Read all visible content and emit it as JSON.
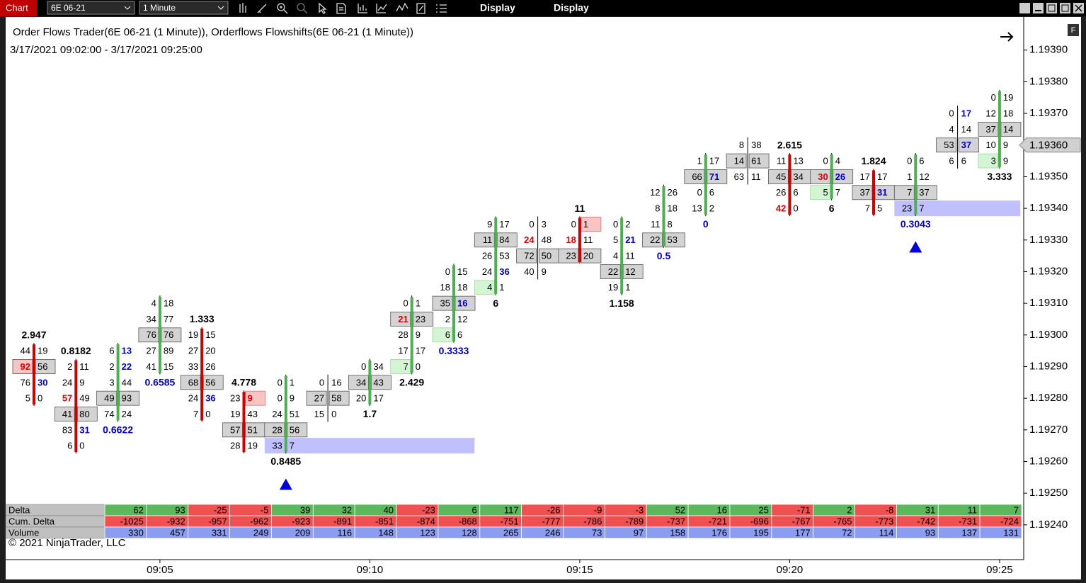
{
  "toolbar": {
    "app_label": "Chart",
    "instrument": "6E 06-21",
    "interval": "1 Minute",
    "menus": [
      "Display",
      "Display"
    ]
  },
  "chart_data": {
    "type": "footprint",
    "title": "Order Flows Trader(6E 06-21 (1 Minute)),  Orderflows Flowshifts(6E 06-21 (1 Minute))",
    "subtitle": "3/17/2021 09:02:00 - 3/17/2021 09:25:00",
    "copyright": "© 2021 NinjaTrader, LLC",
    "panel_button": "F",
    "ylim": [
      1.19229,
      1.19398
    ],
    "yticks": [
      {
        "value": 1.1939,
        "label": "1.19390"
      },
      {
        "value": 1.1938,
        "label": "1.19380"
      },
      {
        "value": 1.1937,
        "label": "1.19370"
      },
      {
        "value": 1.1936,
        "label": "1.19360"
      },
      {
        "value": 1.1935,
        "label": "1.19350"
      },
      {
        "value": 1.1934,
        "label": "1.19340"
      },
      {
        "value": 1.1933,
        "label": "1.19330"
      },
      {
        "value": 1.1932,
        "label": "1.19320"
      },
      {
        "value": 1.1931,
        "label": "1.19310"
      },
      {
        "value": 1.193,
        "label": "1.19300"
      },
      {
        "value": 1.1929,
        "label": "1.19290"
      },
      {
        "value": 1.1928,
        "label": "1.19280"
      },
      {
        "value": 1.1927,
        "label": "1.19270"
      },
      {
        "value": 1.1926,
        "label": "1.19260"
      },
      {
        "value": 1.1925,
        "label": "1.19250"
      },
      {
        "value": 1.1924,
        "label": "1.19240"
      }
    ],
    "last_price": {
      "value": 1.1936,
      "label": "1.19360"
    },
    "xticks": [
      "09:05",
      "09:10",
      "09:15",
      "09:20",
      "09:25"
    ],
    "colors": {
      "up": "#4caf50",
      "down": "#d00000",
      "red": "#e00000",
      "blue": "#0000c8",
      "box": "#d3d3d3",
      "red_box": "#f8c4c4",
      "green_box": "#d4f5d4",
      "band": "#c0c0ff",
      "signal": "#0000e0",
      "pos": "#5cb85c",
      "neg": "#f05050",
      "volume": "#8c9cf0",
      "header": "#c0c0c0"
    },
    "bars": [
      {
        "time": "09:02",
        "candle": "down",
        "label": "2.947",
        "label_pos": "top",
        "rows": [
          {
            "p": 1.19295,
            "bid": 44,
            "ask": 19
          },
          {
            "p": 1.1929,
            "bid": 92,
            "ask": 56,
            "box": true,
            "bc": "red",
            "bb": "red_box"
          },
          {
            "p": 1.19285,
            "bid": 76,
            "ask": 30,
            "ac": "blue"
          },
          {
            "p": 1.1928,
            "bid": 5,
            "ask": 0
          }
        ]
      },
      {
        "time": "09:03",
        "candle": "down",
        "label": "0.8182",
        "label_pos": "top",
        "rows": [
          {
            "p": 1.1929,
            "bid": 2,
            "ask": 11
          },
          {
            "p": 1.19285,
            "bid": 24,
            "ask": 9
          },
          {
            "p": 1.1928,
            "bid": 57,
            "ask": 49,
            "bc": "red"
          },
          {
            "p": 1.19275,
            "bid": 41,
            "ask": 80,
            "box": true
          },
          {
            "p": 1.1927,
            "bid": 83,
            "ask": 31,
            "ac": "blue"
          },
          {
            "p": 1.19265,
            "bid": 6,
            "ask": 0
          }
        ]
      },
      {
        "time": "09:04",
        "candle": "up",
        "label": "0.6622",
        "label_pos": "bottom",
        "label_color": "blue",
        "rows": [
          {
            "p": 1.19295,
            "bid": 6,
            "ask": 13,
            "ac": "blue"
          },
          {
            "p": 1.1929,
            "bid": 2,
            "ask": 22,
            "ac": "blue"
          },
          {
            "p": 1.19285,
            "bid": 3,
            "ask": 44
          },
          {
            "p": 1.1928,
            "bid": 49,
            "ask": 93,
            "box": true
          },
          {
            "p": 1.19275,
            "bid": 74,
            "ask": 24
          }
        ]
      },
      {
        "time": "09:05",
        "candle": "up",
        "label": "0.6585",
        "label_pos": "bottom",
        "label_color": "blue",
        "rows": [
          {
            "p": 1.1931,
            "bid": 4,
            "ask": 18
          },
          {
            "p": 1.19305,
            "bid": 34,
            "ask": 77
          },
          {
            "p": 1.193,
            "bid": 76,
            "ask": 76,
            "box": true
          },
          {
            "p": 1.19295,
            "bid": 27,
            "ask": 89
          },
          {
            "p": 1.1929,
            "bid": 41,
            "ask": 15
          }
        ]
      },
      {
        "time": "09:06",
        "candle": "down",
        "label": "1.333",
        "label_pos": "top",
        "rows": [
          {
            "p": 1.193,
            "bid": 19,
            "ask": 15
          },
          {
            "p": 1.19295,
            "bid": 27,
            "ask": 20
          },
          {
            "p": 1.1929,
            "bid": 33,
            "ask": 26
          },
          {
            "p": 1.19285,
            "bid": 68,
            "ask": 56,
            "box": true
          },
          {
            "p": 1.1928,
            "bid": 24,
            "ask": 36,
            "ac": "blue"
          },
          {
            "p": 1.19275,
            "bid": 7,
            "ask": 0
          }
        ]
      },
      {
        "time": "09:07",
        "candle": "down",
        "label": "4.778",
        "label_pos": "top",
        "rows": [
          {
            "p": 1.1928,
            "bid": 23,
            "ask": 9,
            "ac": "red",
            "ab": "red_box"
          },
          {
            "p": 1.19275,
            "bid": 19,
            "ask": 43
          },
          {
            "p": 1.1927,
            "bid": 57,
            "ask": 51,
            "box": true
          },
          {
            "p": 1.19265,
            "bid": 28,
            "ask": 19
          }
        ]
      },
      {
        "time": "09:08",
        "candle": "up",
        "label": "0.8485",
        "label_pos": "bottom",
        "signal": "up",
        "rows": [
          {
            "p": 1.19285,
            "bid": 0,
            "ask": 1
          },
          {
            "p": 1.1928,
            "bid": 0,
            "ask": 9
          },
          {
            "p": 1.19275,
            "bid": 24,
            "ask": 51
          },
          {
            "p": 1.1927,
            "bid": 28,
            "ask": 56,
            "box": true
          },
          {
            "p": 1.19265,
            "bid": 33,
            "ask": 7,
            "band_bars": 5
          }
        ]
      },
      {
        "time": "09:09",
        "rows": [
          {
            "p": 1.19285,
            "bid": 0,
            "ask": 16
          },
          {
            "p": 1.1928,
            "bid": 27,
            "ask": 58,
            "box": true
          },
          {
            "p": 1.19275,
            "bid": 15,
            "ask": 0
          }
        ]
      },
      {
        "time": "09:10",
        "candle": "up",
        "label": "1.7",
        "label_pos": "bottom",
        "rows": [
          {
            "p": 1.1929,
            "bid": 0,
            "ask": 34
          },
          {
            "p": 1.19285,
            "bid": 34,
            "ask": 43,
            "box": true
          },
          {
            "p": 1.1928,
            "bid": 20,
            "ask": 17
          }
        ]
      },
      {
        "time": "09:11",
        "candle": "up",
        "label": "2.429",
        "label_pos": "bottom",
        "rows": [
          {
            "p": 1.1931,
            "bid": 0,
            "ask": 1
          },
          {
            "p": 1.19305,
            "bid": 21,
            "ask": 23,
            "box": true,
            "bc": "red"
          },
          {
            "p": 1.193,
            "bid": 28,
            "ask": 9
          },
          {
            "p": 1.19295,
            "bid": 17,
            "ask": 17
          },
          {
            "p": 1.1929,
            "bid": 7,
            "ask": 0,
            "bb": "green_box"
          }
        ]
      },
      {
        "time": "09:12",
        "candle": "up",
        "label": "0.3333",
        "label_pos": "bottom",
        "label_color": "blue",
        "rows": [
          {
            "p": 1.1932,
            "bid": 0,
            "ask": 15
          },
          {
            "p": 1.19315,
            "bid": 18,
            "ask": 18
          },
          {
            "p": 1.1931,
            "bid": 35,
            "ask": 16,
            "box": true,
            "ac": "blue"
          },
          {
            "p": 1.19305,
            "bid": 2,
            "ask": 12
          },
          {
            "p": 1.193,
            "bid": 6,
            "ask": 6,
            "bb": "green_box"
          }
        ]
      },
      {
        "time": "09:13",
        "candle": "up",
        "label": "6",
        "label_pos": "bottom",
        "rows": [
          {
            "p": 1.19335,
            "bid": 9,
            "ask": 17
          },
          {
            "p": 1.1933,
            "bid": 11,
            "ask": 84,
            "box": true
          },
          {
            "p": 1.19325,
            "bid": 26,
            "ask": 53
          },
          {
            "p": 1.1932,
            "bid": 24,
            "ask": 36,
            "ac": "blue"
          },
          {
            "p": 1.19315,
            "bid": 4,
            "ask": 1,
            "bb": "green_box"
          }
        ]
      },
      {
        "time": "09:14",
        "rows": [
          {
            "p": 1.19335,
            "bid": 0,
            "ask": 3
          },
          {
            "p": 1.1933,
            "bid": 24,
            "ask": 48,
            "bc": "red"
          },
          {
            "p": 1.19325,
            "bid": 72,
            "ask": 50,
            "box": true
          },
          {
            "p": 1.1932,
            "bid": 40,
            "ask": 9
          }
        ]
      },
      {
        "time": "09:15",
        "candle": "down",
        "label": "11",
        "label_pos": "top",
        "rows": [
          {
            "p": 1.19335,
            "bid": 0,
            "ask": 1,
            "ab": "red_box"
          },
          {
            "p": 1.1933,
            "bid": 18,
            "ask": 11,
            "bc": "red"
          },
          {
            "p": 1.19325,
            "bid": 23,
            "ask": 20,
            "box": true
          }
        ]
      },
      {
        "time": "09:16",
        "candle": "up",
        "label": "1.158",
        "label_pos": "bottom",
        "rows": [
          {
            "p": 1.19335,
            "bid": 0,
            "ask": 2
          },
          {
            "p": 1.1933,
            "bid": 5,
            "ask": 21,
            "ac": "blue"
          },
          {
            "p": 1.19325,
            "bid": 4,
            "ask": 11
          },
          {
            "p": 1.1932,
            "bid": 22,
            "ask": 12,
            "box": true
          },
          {
            "p": 1.19315,
            "bid": 19,
            "ask": 1
          }
        ]
      },
      {
        "time": "09:17",
        "candle": "up",
        "label": "0.5",
        "label_pos": "bottom",
        "label_color": "blue",
        "rows": [
          {
            "p": 1.19345,
            "bid": 12,
            "ask": 26
          },
          {
            "p": 1.1934,
            "bid": 8,
            "ask": 18
          },
          {
            "p": 1.19335,
            "bid": 11,
            "ask": 8
          },
          {
            "p": 1.1933,
            "bid": 22,
            "ask": 53,
            "box": true
          }
        ]
      },
      {
        "time": "09:18",
        "candle": "up",
        "label": "0",
        "label_pos": "bottom",
        "label_color": "blue",
        "rows": [
          {
            "p": 1.19355,
            "bid": 1,
            "ask": 17
          },
          {
            "p": 1.1935,
            "bid": 66,
            "ask": 71,
            "box": true,
            "ac": "blue"
          },
          {
            "p": 1.19345,
            "bid": 0,
            "ask": 6
          },
          {
            "p": 1.1934,
            "bid": 13,
            "ask": 2
          }
        ]
      },
      {
        "time": "09:19",
        "rows": [
          {
            "p": 1.1936,
            "bid": 8,
            "ask": 38
          },
          {
            "p": 1.19355,
            "bid": 14,
            "ask": 61,
            "box": true
          },
          {
            "p": 1.1935,
            "bid": 63,
            "ask": 11
          }
        ]
      },
      {
        "time": "09:20",
        "candle": "down",
        "label": "2.615",
        "label_pos": "top",
        "rows": [
          {
            "p": 1.19355,
            "bid": 11,
            "ask": 13
          },
          {
            "p": 1.1935,
            "bid": 45,
            "ask": 34,
            "box": true
          },
          {
            "p": 1.19345,
            "bid": 26,
            "ask": 6
          },
          {
            "p": 1.1934,
            "bid": 42,
            "ask": 0,
            "bc": "red"
          }
        ]
      },
      {
        "time": "09:21",
        "candle": "up",
        "label": "6",
        "label_pos": "bottom",
        "rows": [
          {
            "p": 1.19355,
            "bid": 0,
            "ask": 4
          },
          {
            "p": 1.1935,
            "bid": 30,
            "ask": 26,
            "box": true,
            "bc": "red",
            "ac": "blue"
          },
          {
            "p": 1.19345,
            "bid": 5,
            "ask": 7,
            "bb": "green_box"
          }
        ]
      },
      {
        "time": "09:22",
        "candle": "down",
        "label": "1.824",
        "label_pos": "top",
        "rows": [
          {
            "p": 1.1935,
            "bid": 17,
            "ask": 17
          },
          {
            "p": 1.19345,
            "bid": 37,
            "ask": 31,
            "box": true,
            "ac": "blue"
          },
          {
            "p": 1.1934,
            "bid": 7,
            "ask": 5
          }
        ]
      },
      {
        "time": "09:23",
        "candle": "up",
        "label": "0.3043",
        "label_pos": "bottom",
        "label_color": "blue",
        "signal": "up",
        "rows": [
          {
            "p": 1.19355,
            "bid": 0,
            "ask": 6
          },
          {
            "p": 1.1935,
            "bid": 1,
            "ask": 12
          },
          {
            "p": 1.19345,
            "bid": 7,
            "ask": 37,
            "box": true
          },
          {
            "p": 1.1934,
            "bid": 23,
            "ask": 7,
            "band_bars": 3
          }
        ]
      },
      {
        "time": "09:24",
        "rows": [
          {
            "p": 1.1937,
            "bid": 0,
            "ask": 17,
            "ac": "blue"
          },
          {
            "p": 1.19365,
            "bid": 4,
            "ask": 14
          },
          {
            "p": 1.1936,
            "bid": 53,
            "ask": 37,
            "box": true,
            "ac": "blue"
          },
          {
            "p": 1.19355,
            "bid": 6,
            "ask": 6
          }
        ]
      },
      {
        "time": "09:25",
        "candle": "up",
        "label": "3.333",
        "label_pos": "bottom",
        "rows": [
          {
            "p": 1.19375,
            "bid": 0,
            "ask": 19
          },
          {
            "p": 1.1937,
            "bid": 12,
            "ask": 18
          },
          {
            "p": 1.19365,
            "bid": 37,
            "ask": 14,
            "box": true
          },
          {
            "p": 1.1936,
            "bid": 10,
            "ask": 9
          },
          {
            "p": 1.19355,
            "bid": 3,
            "ask": 9,
            "bb": "green_box"
          }
        ]
      }
    ],
    "table": {
      "labels": [
        "Delta",
        "Cum. Delta",
        "Volume"
      ],
      "delta": [
        62,
        93,
        -25,
        -5,
        39,
        32,
        40,
        -23,
        6,
        117,
        -26,
        -9,
        -3,
        52,
        16,
        25,
        -71,
        2,
        -8,
        31,
        11,
        7
      ],
      "cum_delta": [
        -1025,
        -932,
        -957,
        -962,
        -923,
        -891,
        -851,
        -874,
        -868,
        -751,
        -777,
        -786,
        -789,
        -737,
        -721,
        -696,
        -767,
        -765,
        -773,
        -742,
        -731,
        -724
      ],
      "volume": [
        330,
        457,
        331,
        249,
        209,
        116,
        148,
        123,
        128,
        265,
        246,
        73,
        97,
        158,
        176,
        195,
        177,
        72,
        114,
        93,
        137,
        131
      ]
    }
  }
}
